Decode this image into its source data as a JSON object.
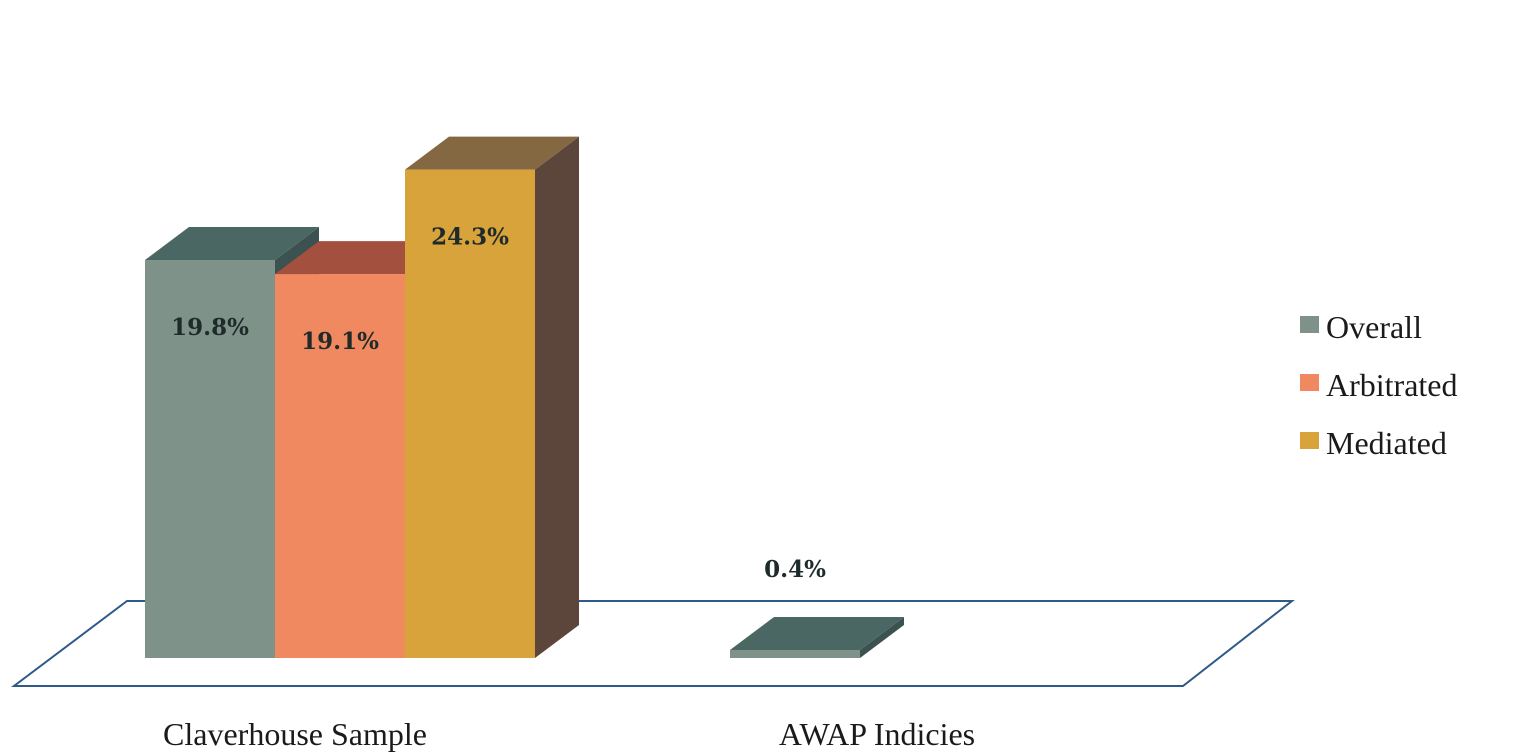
{
  "chart_data": {
    "type": "bar",
    "categories": [
      "Claverhouse Sample",
      "AWAP Indicies"
    ],
    "series": [
      {
        "name": "Overall",
        "values": [
          19.8,
          0.4
        ],
        "labels": [
          "19.8%",
          "0.4%"
        ],
        "color": "#7f9289",
        "top_color": "#4b6763",
        "side_color": "#3b5250"
      },
      {
        "name": "Arbitrated",
        "values": [
          19.1,
          null
        ],
        "labels": [
          "19.1%",
          ""
        ],
        "color": "#f18960",
        "top_color": "#a3503f",
        "side_color": "#8a4a38"
      },
      {
        "name": "Mediated",
        "values": [
          24.3,
          null
        ],
        "labels": [
          "24.3%",
          ""
        ],
        "color": "#d7a33a",
        "top_color": "#846841",
        "side_color": "#5c463c"
      }
    ],
    "ylim": [
      0,
      25
    ],
    "grid": false,
    "legend_position": "right",
    "three_d": true
  }
}
